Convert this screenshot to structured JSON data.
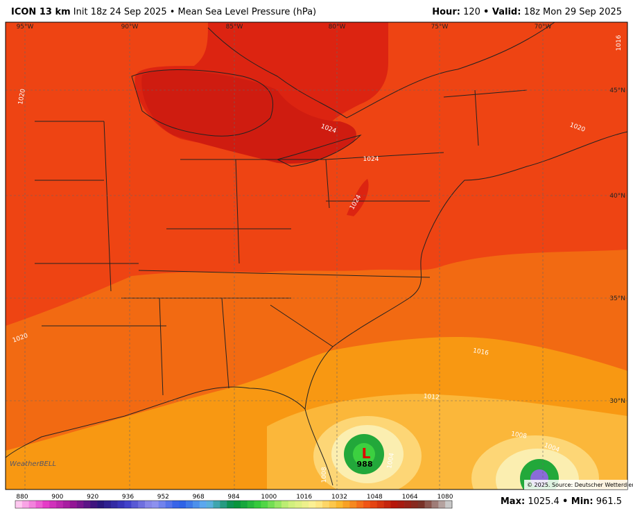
{
  "header": {
    "model": "ICON 13 km",
    "description": "Init 18z 24 Sep 2025 • Mean Sea Level Pressure (hPa)",
    "hour_label": "Hour:",
    "hour": "120",
    "valid_label": "• Valid:",
    "valid": "18z Mon 29 Sep 2025"
  },
  "map": {
    "longitude_labels": [
      "95°W",
      "90°W",
      "85°W",
      "80°W",
      "75°W",
      "70°W"
    ],
    "latitude_labels": [
      "45°N",
      "40°N",
      "35°N",
      "30°N"
    ],
    "contour_labels": [
      "1020",
      "1024",
      "1024",
      "1024",
      "1020",
      "1020",
      "1016",
      "1012",
      "1008",
      "1004",
      "1008",
      "1004",
      "1016"
    ],
    "low_symbol": "L",
    "low_pressure": "988",
    "logo": "WeatherBELL",
    "credit": "© 2025. Source: Deutscher Wetterdienst"
  },
  "colorbar": {
    "ticks": [
      880,
      900,
      920,
      936,
      952,
      968,
      984,
      1000,
      1016,
      1032,
      1048,
      1064,
      1080
    ]
  },
  "footer": {
    "max_label": "Max:",
    "max": "1025.4",
    "min_label": "• Min:",
    "min": "961.5"
  }
}
